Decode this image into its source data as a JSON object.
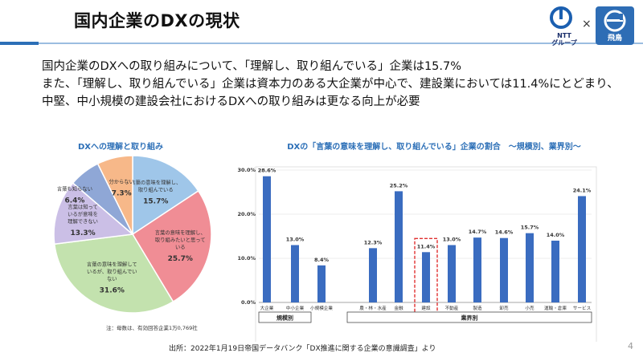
{
  "header": {
    "title": "国内企業のDXの現状",
    "ntt_logo_text": [
      "NTT",
      "グループ"
    ],
    "times_sign": "×",
    "asuka_logo_text": "飛鳥"
  },
  "intro_lines": [
    "国内企業のDXへの取り組みについて、「理解し、取り組んでいる」企業は15.7%",
    "また、「理解し、取り組んでいる」企業は資本力のある大企業が中心で、建設業においては11.4%にとどまり、",
    "中堅、中小規模の建設会社におけるDXへの取り組みは更なる向上が必要"
  ],
  "pie_note": "注：母数は、有効回答企業1万0,769社",
  "source": "出所：2022年1月19日帝国データバンク「DX推進に関する企業の意識調査」より",
  "page_number": "4",
  "chart_data": [
    {
      "type": "pie",
      "title": "DXへの理解と取り組み",
      "slices": [
        {
          "label": [
            "言葉の意味を理解し、",
            "取り組んでいる"
          ],
          "value": 15.7,
          "value_label": "15.7%",
          "color": "#9fc6e9"
        },
        {
          "label": [
            "言葉の意味を理解し、",
            "取り組みたいと思って",
            "いる"
          ],
          "value": 25.7,
          "value_label": "25.7%",
          "color": "#f08d95"
        },
        {
          "label": [
            "言葉の意味を理解して",
            "いるが、取り組んでい",
            "ない"
          ],
          "value": 31.6,
          "value_label": "31.6%",
          "color": "#c3e2ae"
        },
        {
          "label": [
            "言葉は知って",
            "いるが意味を",
            "理解できない"
          ],
          "value": 13.3,
          "value_label": "13.3%",
          "color": "#cbbfe6"
        },
        {
          "label": [
            "言葉も知らない"
          ],
          "value": 6.4,
          "value_label": "6.4%",
          "color": "#8fa7d6"
        },
        {
          "label": [
            "分からない"
          ],
          "value": 7.3,
          "value_label": "7.3%",
          "color": "#f7b889"
        }
      ]
    },
    {
      "type": "bar",
      "title": "DXの「言葉の意味を理解し、取り組んでいる」企業の割合　～規模別、業界別～",
      "ylim": [
        0,
        30
      ],
      "yticks": [
        "0.0%",
        "10.0%",
        "20.0%",
        "30.0%"
      ],
      "bar_color": "#3a6cc0",
      "categories": [
        "大企業",
        "中小企業",
        "小規模企業",
        "農・林・水産",
        "金融",
        "建設",
        "不動産",
        "製造",
        "卸売",
        "小売",
        "運輸・倉庫",
        "サービス"
      ],
      "values": [
        28.6,
        13.0,
        8.4,
        12.3,
        25.2,
        11.4,
        13.0,
        14.7,
        14.6,
        15.7,
        14.0,
        24.1
      ],
      "value_labels": [
        "28.6%",
        "13.0%",
        "8.4%",
        "12.3%",
        "25.2%",
        "11.4%",
        "13.0%",
        "14.7%",
        "14.6%",
        "15.7%",
        "14.0%",
        "24.1%"
      ],
      "highlight": "建設",
      "groups": [
        {
          "label": "規模別",
          "members": [
            "大企業",
            "中小企業",
            "小規模企業"
          ]
        },
        {
          "label": "業界別",
          "members": [
            "農・林・水産",
            "金融",
            "建設",
            "不動産",
            "製造",
            "卸売",
            "小売",
            "運輸・倉庫",
            "サービス"
          ]
        }
      ]
    }
  ]
}
